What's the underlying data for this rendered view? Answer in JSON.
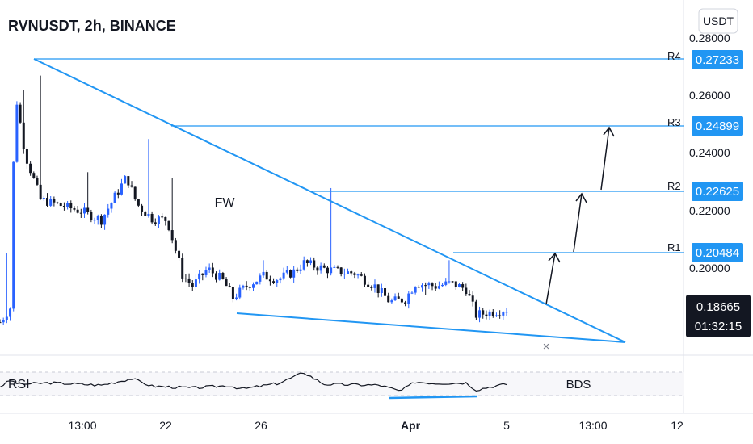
{
  "header": {
    "symbol_title": "RVNUSDT, 2h, BINANCE"
  },
  "currency_button": {
    "label": "USDT"
  },
  "colors": {
    "up": "#2962ff",
    "down": "#131722",
    "trendline": "#2196f3",
    "price_label_bg": "#2196f3",
    "current_price_bg": "#131722",
    "rsi_line": "#131722",
    "grid": "#e0e3eb"
  },
  "chart_data": {
    "type": "candlestick",
    "title": "RVNUSDT, 2h, BINANCE",
    "ylim": [
      0.177,
      0.2825
    ],
    "price_ticks": [
      "0.28000",
      "0.26000",
      "0.24000",
      "0.22000",
      "0.20000"
    ],
    "date_ticks": [
      "13:00",
      "22",
      "26",
      "Apr",
      "5",
      "13:00",
      "12"
    ],
    "resistance_levels": [
      {
        "name": "R4",
        "value": "0.27233"
      },
      {
        "name": "R3",
        "value": "0.24899"
      },
      {
        "name": "R2",
        "value": "0.22625"
      },
      {
        "name": "R1",
        "value": "0.20484"
      }
    ],
    "current_price": "0.18665",
    "countdown": "01:32:15",
    "annotations": {
      "pattern_label": "FW",
      "rsi_label": "RSI",
      "signature": "BDS",
      "marker": "×"
    },
    "path_keypoints": [
      [
        0.0,
        0.182
      ],
      [
        0.02,
        0.187
      ],
      [
        0.03,
        0.262
      ],
      [
        0.05,
        0.24
      ],
      [
        0.08,
        0.2245
      ],
      [
        0.12,
        0.2225
      ],
      [
        0.16,
        0.2205
      ],
      [
        0.2,
        0.2175
      ],
      [
        0.25,
        0.2325
      ],
      [
        0.27,
        0.223
      ],
      [
        0.3,
        0.218
      ],
      [
        0.33,
        0.2175
      ],
      [
        0.36,
        0.1985
      ],
      [
        0.38,
        0.1945
      ],
      [
        0.41,
        0.2005
      ],
      [
        0.44,
        0.1965
      ],
      [
        0.46,
        0.1905
      ],
      [
        0.49,
        0.195
      ],
      [
        0.52,
        0.198
      ],
      [
        0.55,
        0.197
      ],
      [
        0.58,
        0.1995
      ],
      [
        0.6,
        0.2025
      ],
      [
        0.64,
        0.2005
      ],
      [
        0.67,
        0.1995
      ],
      [
        0.7,
        0.199
      ],
      [
        0.74,
        0.1945
      ],
      [
        0.77,
        0.189
      ],
      [
        0.8,
        0.19
      ],
      [
        0.82,
        0.1955
      ],
      [
        0.86,
        0.1945
      ],
      [
        0.89,
        0.1955
      ],
      [
        0.92,
        0.1935
      ],
      [
        0.94,
        0.1845
      ],
      [
        0.97,
        0.1855
      ],
      [
        1.0,
        0.1865
      ]
    ],
    "spikes": [
      [
        2,
        0.206
      ],
      [
        7,
        0.2625
      ],
      [
        12,
        0.2675
      ],
      [
        26,
        0.234
      ],
      [
        44,
        0.2455
      ],
      [
        51,
        0.232
      ],
      [
        78,
        0.2035
      ],
      [
        98,
        0.2285
      ],
      [
        126,
        0.1915
      ],
      [
        133,
        0.2035
      ]
    ],
    "rsi": {
      "range": [
        0,
        100
      ],
      "bands": [
        70,
        30
      ],
      "keypoints": [
        [
          0.0,
          45
        ],
        [
          0.02,
          58
        ],
        [
          0.04,
          50
        ],
        [
          0.1,
          53
        ],
        [
          0.2,
          48
        ],
        [
          0.26,
          62
        ],
        [
          0.3,
          46
        ],
        [
          0.38,
          42
        ],
        [
          0.45,
          47
        ],
        [
          0.48,
          40
        ],
        [
          0.55,
          52
        ],
        [
          0.6,
          75
        ],
        [
          0.64,
          50
        ],
        [
          0.75,
          48
        ],
        [
          0.79,
          35
        ],
        [
          0.82,
          55
        ],
        [
          0.86,
          52
        ],
        [
          0.92,
          53
        ],
        [
          0.94,
          38
        ],
        [
          0.97,
          45
        ],
        [
          1.0,
          50
        ]
      ]
    }
  }
}
